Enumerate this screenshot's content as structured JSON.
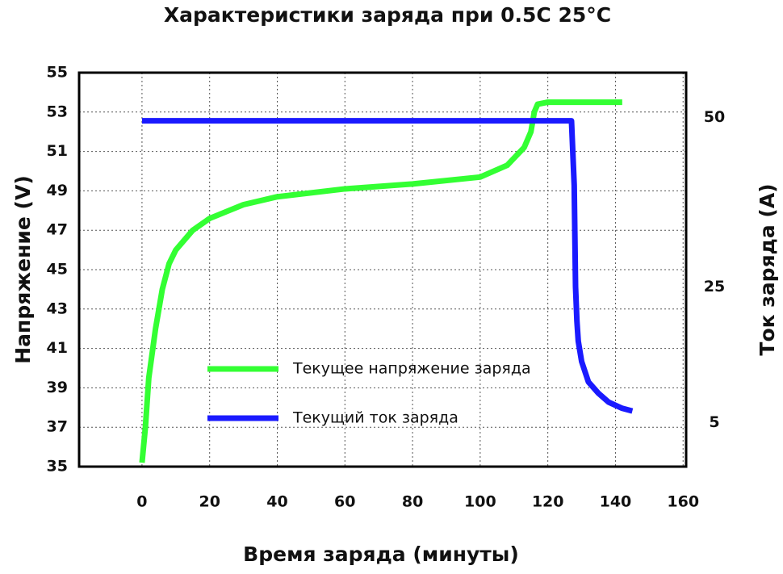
{
  "chart_data": {
    "type": "line",
    "title": "Характеристики заряда при 0.5C  25°C",
    "xlabel": "Время заряда (минуты)",
    "ylabel": "Напряжение (V)",
    "y2label": "Ток заряда (A)",
    "xlim": [
      -18.6,
      160.9
    ],
    "xticks": [
      0,
      20,
      40,
      60,
      80,
      100,
      120,
      140,
      160
    ],
    "ylim": [
      35,
      55
    ],
    "yticks": [
      35,
      37,
      39,
      41,
      43,
      45,
      47,
      49,
      51,
      53,
      55
    ],
    "y2lim": [
      -1.5,
      56.6
    ],
    "y2ticks": [
      5,
      25,
      50
    ],
    "grid": true,
    "series": [
      {
        "name": "Текущее напряжение заряда",
        "color": "#33ff33",
        "x": [
          0,
          1,
          2,
          4,
          6,
          8,
          10,
          15,
          20,
          30,
          40,
          60,
          80,
          100,
          108,
          113,
          115,
          116,
          117,
          120,
          142
        ],
        "values": [
          35.2,
          37,
          39.5,
          42,
          44,
          45.3,
          46,
          47,
          47.6,
          48.3,
          48.7,
          49.1,
          49.35,
          49.7,
          50.3,
          51.2,
          52,
          53,
          53.4,
          53.5,
          53.5
        ]
      },
      {
        "name": "Текущий ток заряда",
        "color": "#1a1aff",
        "axis": "y2",
        "x": [
          0,
          127,
          127.8,
          128.2,
          128.6,
          129,
          130,
          132,
          135,
          138,
          142,
          145
        ],
        "values": [
          49.5,
          49.5,
          40,
          25,
          20,
          17,
          14,
          11,
          9.3,
          8,
          7.1,
          6.7
        ]
      }
    ]
  }
}
